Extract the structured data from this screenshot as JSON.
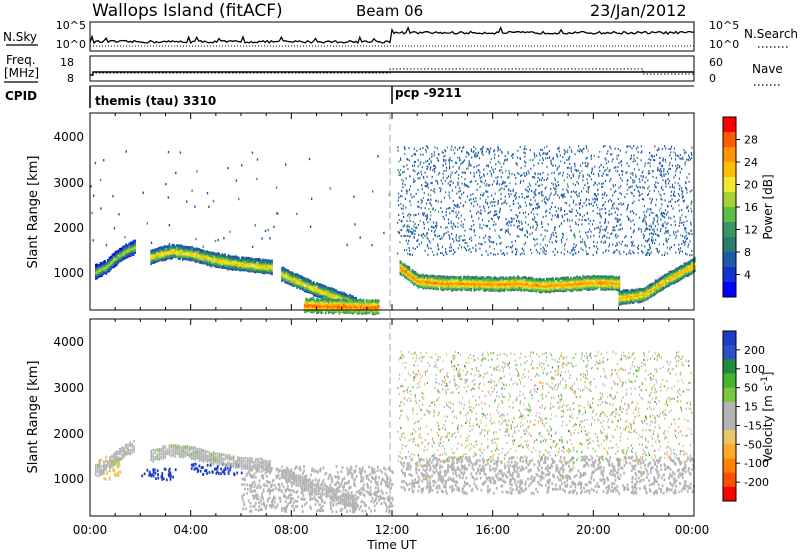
{
  "header": {
    "station": "Wallops Island (fitACF)",
    "beam": "Beam 06",
    "date": "23/Jan/2012"
  },
  "strips": {
    "nsky_label": "N.Sky",
    "nsearch_label": "N.Search",
    "freq_label_top": "Freq.",
    "freq_label_unit": "[MHz]",
    "nave_label": "Nave",
    "cpid_label": "CPID",
    "noise_ticks_left": [
      "10^5",
      "10^0"
    ],
    "noise_ticks_right": [
      "10^5",
      "10^0"
    ],
    "freq_ticks": [
      "18",
      "8"
    ],
    "nave_ticks": [
      "60",
      "0"
    ],
    "cpid_segments": [
      {
        "label": "themis (tau) 3310",
        "start": 0,
        "end": 12
      },
      {
        "label": "pcp -9211",
        "start": 12,
        "end": 24
      }
    ]
  },
  "colorbars": {
    "power": {
      "label": "Power [dB]",
      "ticks": [
        "28",
        "24",
        "20",
        "16",
        "12",
        "8",
        "4"
      ],
      "colors": [
        "#ff0000",
        "#ff5a00",
        "#ff9600",
        "#ffbe00",
        "#eee830",
        "#a8d030",
        "#5fbe46",
        "#3c9664",
        "#2d7a6e",
        "#1e5aaa",
        "#1432d2",
        "#0000ff"
      ]
    },
    "velocity": {
      "label_text": "Velocity [m s",
      "label_exp": "-1",
      "label_close": "]",
      "ticks": [
        "200",
        "100",
        "50",
        "15",
        "-15",
        "-50",
        "-100",
        "-200"
      ],
      "colors": [
        "#1e3cc8",
        "#2d50c8",
        "#1e8c3c",
        "#46b432",
        "#78c840",
        "#b4b4b4",
        "#b4b4b4",
        "#e6c864",
        "#ffaa28",
        "#ff8200",
        "#ff5000",
        "#ff0000"
      ]
    }
  },
  "axes": {
    "ylabel": "Slant Range [km]",
    "yticks": [
      "4000",
      "3000",
      "2000",
      "1000"
    ],
    "xticks": [
      "00:00",
      "04:00",
      "08:00",
      "12:00",
      "16:00",
      "20:00",
      "00:00"
    ],
    "xlabel": "Time UT"
  },
  "chart_data": {
    "type": "heatmap",
    "x_range_hours": [
      0,
      24
    ],
    "y_range_km": [
      180,
      4500
    ],
    "panels": [
      {
        "quantity": "Power",
        "unit": "dB",
        "scale": [
          0,
          30
        ],
        "bands": [
          {
            "x": [
              0.2,
              0.6,
              1.0,
              1.4,
              1.8
            ],
            "y": [
              1050,
              1150,
              1350,
              1500,
              1600
            ],
            "power": 18
          },
          {
            "x": [
              2.4,
              3.2,
              4.0,
              4.8,
              5.6,
              6.4,
              7.2
            ],
            "y": [
              1380,
              1500,
              1450,
              1330,
              1250,
              1200,
              1150
            ],
            "power": 22
          },
          {
            "x": [
              7.6,
              8.2,
              8.8,
              9.4,
              10.0,
              10.6
            ],
            "y": [
              1000,
              850,
              700,
              580,
              450,
              330
            ],
            "power": 22
          },
          {
            "x": [
              8.5,
              9.5,
              10.5,
              11.5
            ],
            "y": [
              320,
              300,
              290,
              280
            ],
            "power": 28
          },
          {
            "x": [
              12.3,
              13.0,
              14.0,
              15.0,
              16.0,
              17.0,
              18.0,
              19.0,
              20.0,
              21.0
            ],
            "y": [
              1150,
              850,
              800,
              800,
              780,
              800,
              750,
              780,
              820,
              800
            ],
            "power": 26
          },
          {
            "x": [
              21.0,
              22.0,
              23.0,
              24.0
            ],
            "y": [
              480,
              550,
              900,
              1200
            ],
            "power": 24
          }
        ]
      },
      {
        "quantity": "Velocity",
        "unit": "m s-1",
        "scale": [
          -200,
          200
        ],
        "regions": [
          {
            "x": [
              2.0,
              3.5
            ],
            "y": [
              1000,
              1250
            ],
            "velocity": 200
          },
          {
            "x": [
              4.0,
              6.0
            ],
            "y": [
              1100,
              1350
            ],
            "velocity": 200
          },
          {
            "x": [
              6.0,
              12.0
            ],
            "y": [
              300,
              1300
            ],
            "velocity": 0
          },
          {
            "x": [
              12.3,
              24.0
            ],
            "y": [
              700,
              1500
            ],
            "velocity": -20
          },
          {
            "x": [
              0.3,
              1.2
            ],
            "y": [
              1000,
              1500
            ],
            "velocity": -60
          }
        ]
      }
    ]
  }
}
